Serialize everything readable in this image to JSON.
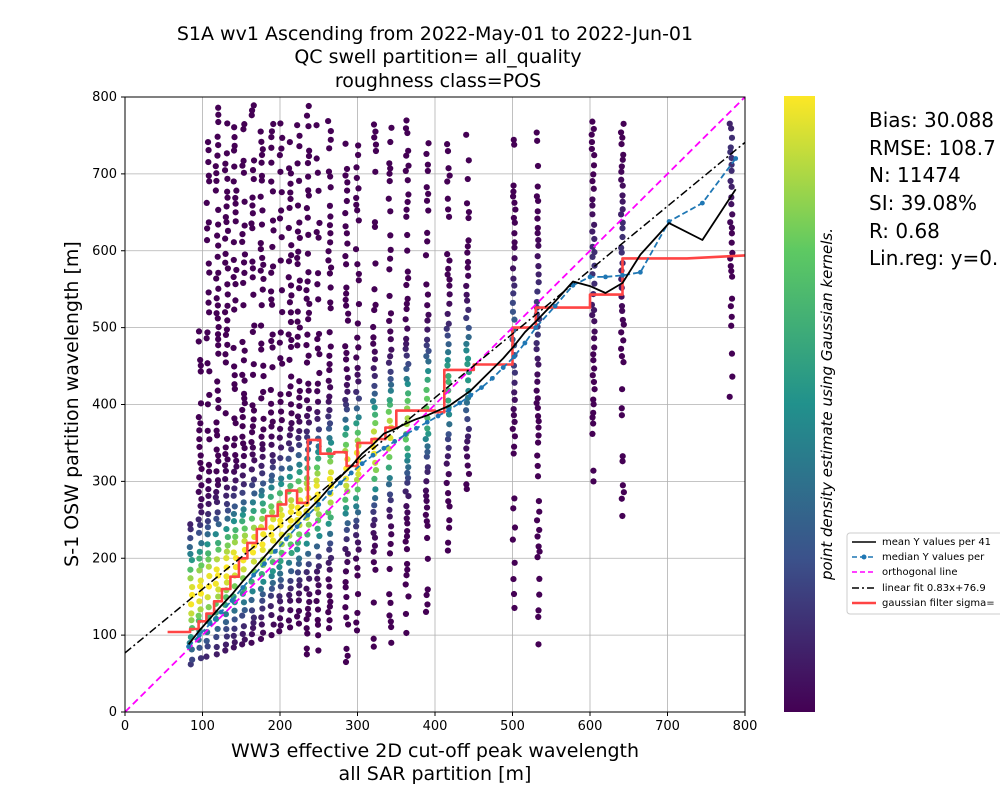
{
  "chart_data": {
    "type": "scatter",
    "title_lines": [
      "S1A wv1 Ascending from 2022-May-01 to 2022-Jun-01",
      "QC swell partition= all_quality",
      "roughness class=POS"
    ],
    "xlabel_lines": [
      "WW3 effective 2D cut-off peak wavelength",
      "all SAR partition [m]"
    ],
    "ylabel": "S-1 OSW partition wavelength [m]",
    "xlim": [
      0,
      800
    ],
    "ylim": [
      0,
      800
    ],
    "xticks": [
      0,
      100,
      200,
      300,
      400,
      500,
      600,
      700,
      800
    ],
    "yticks": [
      0,
      100,
      200,
      300,
      400,
      500,
      600,
      700,
      800
    ],
    "grid": true,
    "colorbar_label": "point density estimate using Gaussian kernels.",
    "colormap": [
      "#440154",
      "#3b528b",
      "#21918c",
      "#5ec962",
      "#fde725"
    ],
    "stats": [
      "Bias: 30.088",
      "RMSE: 108.7",
      "N: 11474",
      "SI: 39.08%",
      "R: 0.68",
      "Lin.reg: y=0."
    ],
    "legend": {
      "placement": "outside right",
      "entries": [
        {
          "label": "mean Y values per 41",
          "color": "#000000",
          "style": "solid"
        },
        {
          "label": "median Y values per",
          "color": "#1f77b4",
          "style": "dashed-marker"
        },
        {
          "label": "orthogonal line",
          "color": "#ff00ff",
          "style": "dashed"
        },
        {
          "label": "linear fit 0.83x+76.9",
          "color": "#000000",
          "style": "dashdot"
        },
        {
          "label": "gaussian filter sigma=",
          "color": "#ff4444",
          "style": "thick"
        }
      ]
    },
    "series": [
      {
        "name": "mean Y values per 41",
        "x": [
          82,
          96,
          110,
          124,
          138,
          152,
          166,
          180,
          194,
          208,
          222,
          236,
          250,
          264,
          278,
          292,
          306,
          320,
          334,
          348,
          362,
          376,
          390,
          404,
          418,
          432,
          446,
          460,
          474,
          488,
          502,
          516,
          530,
          555,
          578,
          600,
          620,
          642,
          665,
          702,
          745,
          788
        ],
        "y": [
          88,
          106,
          122,
          138,
          153,
          170,
          186,
          202,
          218,
          234,
          248,
          262,
          276,
          292,
          306,
          320,
          336,
          348,
          362,
          368,
          375,
          381,
          386,
          392,
          398,
          408,
          418,
          432,
          446,
          460,
          476,
          494,
          508,
          534,
          560,
          554,
          545,
          558,
          595,
          636,
          614,
          680
        ]
      },
      {
        "name": "median Y values per",
        "x": [
          82,
          96,
          110,
          124,
          138,
          152,
          166,
          180,
          194,
          208,
          222,
          236,
          250,
          264,
          278,
          292,
          306,
          320,
          334,
          348,
          362,
          376,
          390,
          404,
          418,
          432,
          446,
          460,
          474,
          488,
          502,
          516,
          530,
          555,
          578,
          600,
          620,
          642,
          665,
          702,
          745,
          788
        ],
        "y": [
          85,
          100,
          115,
          130,
          145,
          162,
          178,
          193,
          209,
          225,
          241,
          256,
          270,
          285,
          298,
          311,
          323,
          334,
          343,
          352,
          361,
          369,
          377,
          385,
          393,
          402,
          412,
          422,
          434,
          448,
          462,
          480,
          500,
          528,
          555,
          566,
          566,
          568,
          572,
          638,
          662,
          720
        ]
      },
      {
        "name": "orthogonal line",
        "x": [
          0,
          800
        ],
        "y": [
          0,
          800
        ]
      },
      {
        "name": "linear fit 0.83x+76.9",
        "x": [
          0,
          800
        ],
        "y": [
          76.9,
          740.9
        ]
      },
      {
        "name": "gaussian filter sigma=",
        "x": [
          55,
          84,
          84,
          95,
          95,
          105,
          105,
          115,
          115,
          125,
          125,
          136,
          136,
          147,
          147,
          158,
          158,
          170,
          170,
          182,
          182,
          197,
          197,
          208,
          208,
          222,
          222,
          236,
          236,
          252,
          252,
          270,
          270,
          286,
          286,
          300,
          300,
          318,
          318,
          336,
          336,
          350,
          350,
          370,
          370,
          400,
          400,
          412,
          412,
          450,
          450,
          500,
          500,
          530,
          530,
          600,
          600,
          642,
          642,
          725,
          800
        ],
        "y": [
          104,
          104,
          108,
          108,
          118,
          118,
          128,
          128,
          144,
          144,
          160,
          160,
          176,
          176,
          200,
          200,
          220,
          220,
          238,
          238,
          255,
          255,
          270,
          270,
          288,
          288,
          272,
          272,
          354,
          354,
          336,
          336,
          338,
          338,
          320,
          320,
          350,
          350,
          355,
          355,
          370,
          370,
          392,
          392,
          392,
          392,
          390,
          390,
          445,
          445,
          452,
          452,
          500,
          500,
          526,
          526,
          543,
          543,
          590,
          590,
          594
        ]
      }
    ],
    "scatter_columns": [
      {
        "x": 85,
        "ymin": 62,
        "ymax": 245
      },
      {
        "x": 97,
        "ymin": 70,
        "ymax": 500
      },
      {
        "x": 107,
        "ymin": 72,
        "ymax": 770
      },
      {
        "x": 119,
        "ymin": 75,
        "ymax": 795
      },
      {
        "x": 131,
        "ymin": 80,
        "ymax": 770
      },
      {
        "x": 142,
        "ymin": 84,
        "ymax": 795
      },
      {
        "x": 153,
        "ymin": 88,
        "ymax": 770
      },
      {
        "x": 165,
        "ymin": 90,
        "ymax": 795
      },
      {
        "x": 177,
        "ymin": 95,
        "ymax": 770
      },
      {
        "x": 190,
        "ymin": 100,
        "ymax": 770
      },
      {
        "x": 201,
        "ymin": 105,
        "ymax": 770
      },
      {
        "x": 213,
        "ymin": 110,
        "ymax": 770
      },
      {
        "x": 224,
        "ymin": 115,
        "ymax": 770
      },
      {
        "x": 236,
        "ymin": 75,
        "ymax": 795
      },
      {
        "x": 249,
        "ymin": 80,
        "ymax": 770
      },
      {
        "x": 264,
        "ymin": 90,
        "ymax": 770
      },
      {
        "x": 286,
        "ymin": 65,
        "ymax": 795
      },
      {
        "x": 300,
        "ymin": 95,
        "ymax": 770
      },
      {
        "x": 322,
        "ymin": 85,
        "ymax": 770
      },
      {
        "x": 342,
        "ymin": 90,
        "ymax": 770
      },
      {
        "x": 364,
        "ymin": 80,
        "ymax": 795
      },
      {
        "x": 390,
        "ymin": 100,
        "ymax": 770
      },
      {
        "x": 417,
        "ymin": 210,
        "ymax": 770
      },
      {
        "x": 442,
        "ymin": 290,
        "ymax": 770
      },
      {
        "x": 502,
        "ymin": 125,
        "ymax": 770
      },
      {
        "x": 533,
        "ymin": 88,
        "ymax": 770
      },
      {
        "x": 604,
        "ymin": 300,
        "ymax": 770
      },
      {
        "x": 642,
        "ymin": 255,
        "ymax": 770
      },
      {
        "x": 782,
        "ymin": 410,
        "ymax": 770
      }
    ]
  }
}
